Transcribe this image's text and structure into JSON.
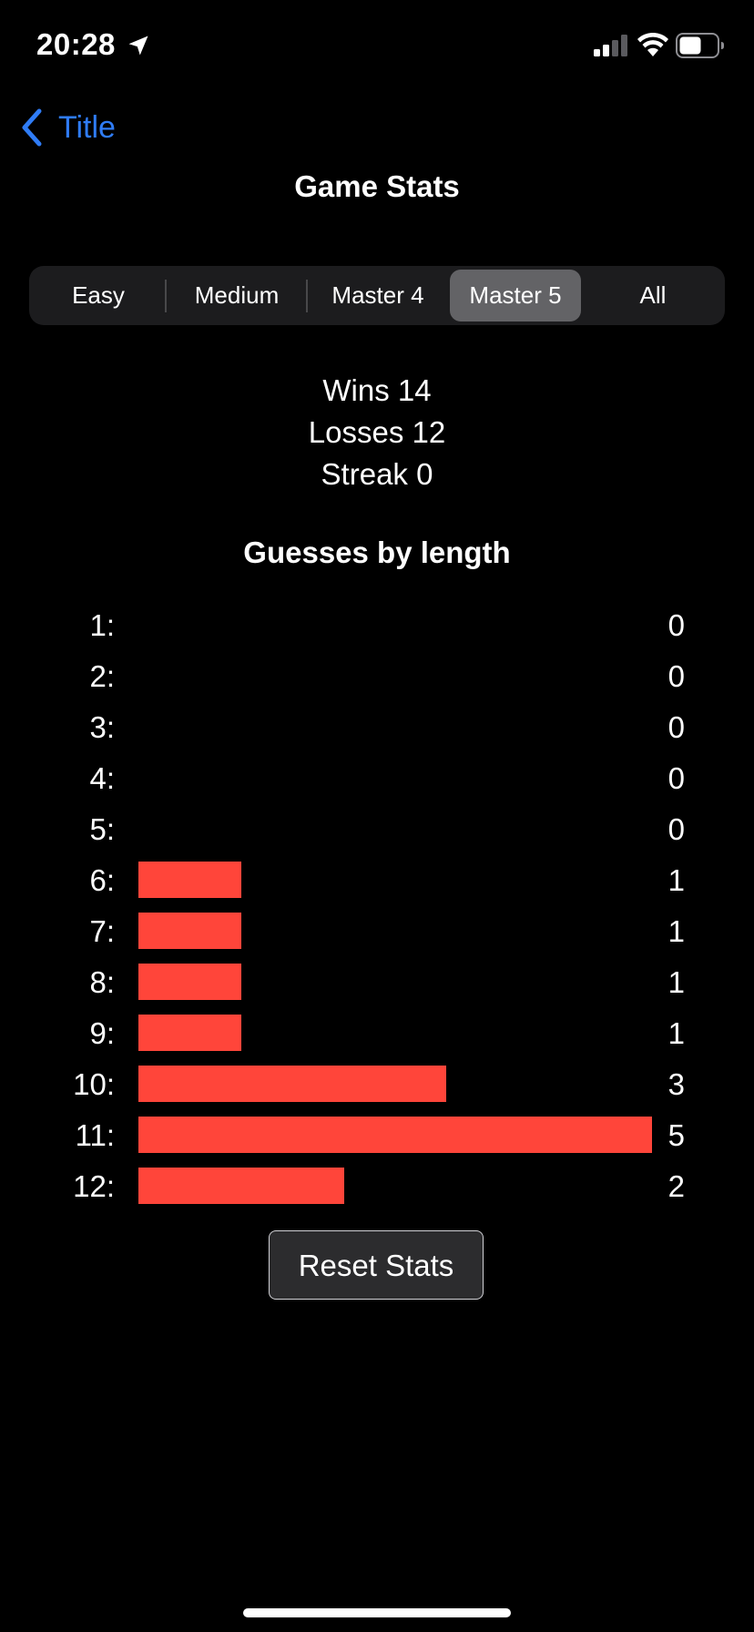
{
  "status_bar": {
    "time": "20:28"
  },
  "nav": {
    "back_label": "Title",
    "title": "Game Stats"
  },
  "segments": {
    "items": [
      "Easy",
      "Medium",
      "Master 4",
      "Master 5",
      "All"
    ],
    "selected": "Master 5"
  },
  "summary": {
    "wins": "Wins 14",
    "losses": "Losses 12",
    "streak": "Streak 0"
  },
  "histogram": {
    "title": "Guesses by length",
    "rows": [
      {
        "label": "1:",
        "count": "0"
      },
      {
        "label": "2:",
        "count": "0"
      },
      {
        "label": "3:",
        "count": "0"
      },
      {
        "label": "4:",
        "count": "0"
      },
      {
        "label": "5:",
        "count": "0"
      },
      {
        "label": "6:",
        "count": "1"
      },
      {
        "label": "7:",
        "count": "1"
      },
      {
        "label": "8:",
        "count": "1"
      },
      {
        "label": "9:",
        "count": "1"
      },
      {
        "label": "10:",
        "count": "3"
      },
      {
        "label": "11:",
        "count": "5"
      },
      {
        "label": "12:",
        "count": "2"
      }
    ]
  },
  "chart_data": {
    "type": "bar",
    "orientation": "horizontal",
    "title": "Guesses by length",
    "categories": [
      "1:",
      "2:",
      "3:",
      "4:",
      "5:",
      "6:",
      "7:",
      "8:",
      "9:",
      "10:",
      "11:",
      "12:"
    ],
    "values": [
      0,
      0,
      0,
      0,
      0,
      1,
      1,
      1,
      1,
      3,
      5,
      2
    ],
    "xlim": [
      0,
      5
    ],
    "bar_color": "#ff453a",
    "grid": false
  },
  "reset": {
    "label": "Reset Stats"
  },
  "colors": {
    "accent": "#2f7cf6",
    "bar": "#ff453a",
    "background": "#000000",
    "segment_bg": "#1c1c1e",
    "segment_selected": "#636366"
  }
}
